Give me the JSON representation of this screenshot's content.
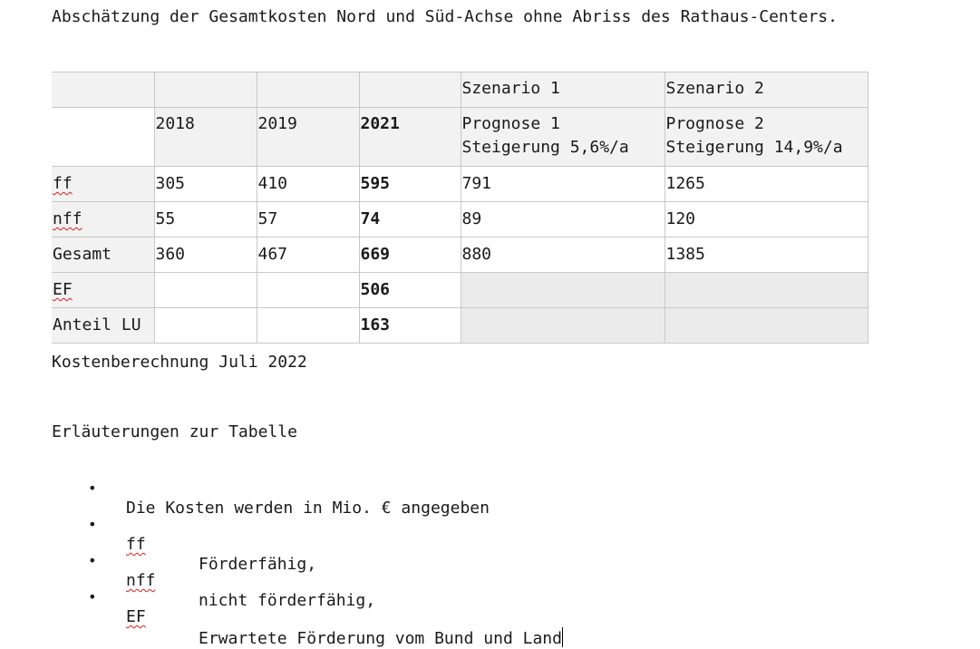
{
  "document": {
    "title": "Abschätzung der Gesamtkosten Nord und Süd-Achse ohne Abriss des Rathaus-Centers.",
    "caption": "Kostenberechnung Juli 2022",
    "legend_title": "Erläuterungen zur Tabelle"
  },
  "table": {
    "header_row1": [
      "",
      "",
      "",
      "",
      "Szenario 1",
      "Szenario 2"
    ],
    "header_row2": [
      "",
      "2018",
      "2019",
      "2021",
      "Prognose 1\nSteigerung 5,6%/a",
      "Prognose 2\nSteigerung 14,9%/a"
    ],
    "rows": [
      [
        "ff",
        "305",
        "410",
        "595",
        "791",
        "1265"
      ],
      [
        "nff",
        "55",
        "57",
        "74",
        "89",
        "120"
      ],
      [
        "Gesamt",
        "360",
        "467",
        "669",
        "880",
        "1385"
      ],
      [
        "EF",
        "",
        "",
        "506",
        "",
        ""
      ],
      [
        "Anteil LU",
        "",
        "",
        "163",
        "",
        ""
      ]
    ]
  },
  "legend": {
    "items": [
      {
        "bullet": "•",
        "text": "Die Kosten werden in Mio. € angegeben"
      },
      {
        "bullet": "•",
        "key": "ff",
        "text": "Förderfähig,"
      },
      {
        "bullet": "•",
        "key": "nff",
        "text": "nicht förderfähig,"
      },
      {
        "bullet": "•",
        "key": "EF",
        "text": "Erwartete Förderung vom Bund und Land"
      }
    ]
  }
}
